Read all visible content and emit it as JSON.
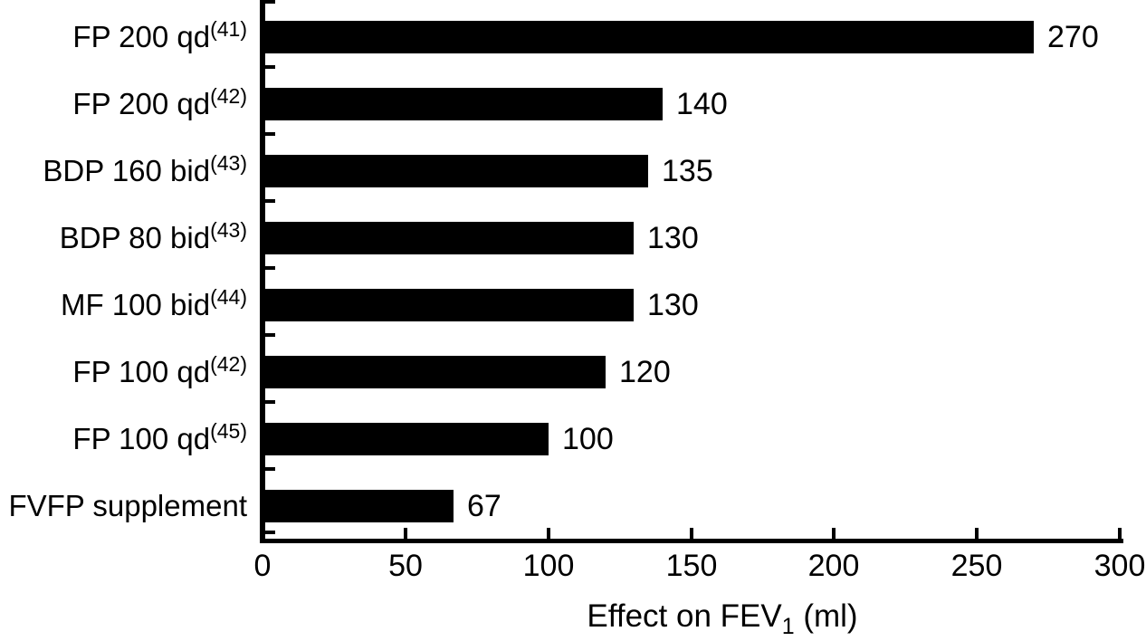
{
  "chart_data": {
    "type": "bar",
    "orientation": "horizontal",
    "title": "",
    "xlabel": "Effect on FEV1 (ml)",
    "xlabel_main": "Effect on FEV",
    "xlabel_sub": "1",
    "xlabel_unit": " (ml)",
    "ylabel": "",
    "xlim": [
      0,
      300
    ],
    "xticks": [
      0,
      50,
      100,
      150,
      200,
      250,
      300
    ],
    "grid": false,
    "legend": false,
    "bar_color": "#000000",
    "background_color": "#ffffff",
    "rows": [
      {
        "label": "FP 200 qd",
        "ref": "(41)",
        "value": 270,
        "value_label": "270"
      },
      {
        "label": "FP 200 qd",
        "ref": "(42)",
        "value": 140,
        "value_label": "140"
      },
      {
        "label": "BDP 160 bid",
        "ref": "(43)",
        "value": 135,
        "value_label": "135"
      },
      {
        "label": "BDP 80 bid",
        "ref": "(43)",
        "value": 130,
        "value_label": "130"
      },
      {
        "label": "MF 100 bid",
        "ref": "(44)",
        "value": 130,
        "value_label": "130"
      },
      {
        "label": "FP 100 qd",
        "ref": "(42)",
        "value": 120,
        "value_label": "120"
      },
      {
        "label": "FP 100 qd",
        "ref": "(45)",
        "value": 100,
        "value_label": "100"
      },
      {
        "label": "FVFP supplement",
        "ref": "",
        "value": 67,
        "value_label": "67"
      }
    ]
  }
}
